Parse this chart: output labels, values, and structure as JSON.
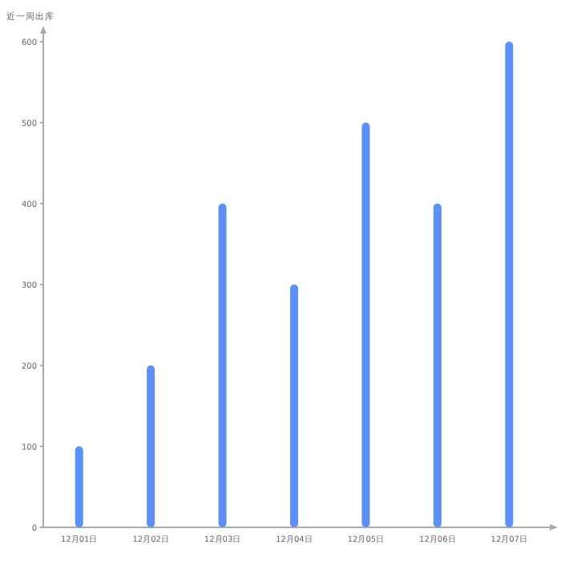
{
  "chart_data": {
    "type": "bar",
    "ylabel": "近一周出库",
    "categories": [
      "12月01日",
      "12月02日",
      "12月03日",
      "12月04日",
      "12月05日",
      "12月06日",
      "12月07日"
    ],
    "values": [
      100,
      200,
      400,
      300,
      500,
      400,
      600
    ],
    "color": "#5b8ff9",
    "ylim": [
      0,
      600
    ],
    "yticks": [
      0,
      100,
      200,
      300,
      400,
      500,
      600
    ]
  }
}
